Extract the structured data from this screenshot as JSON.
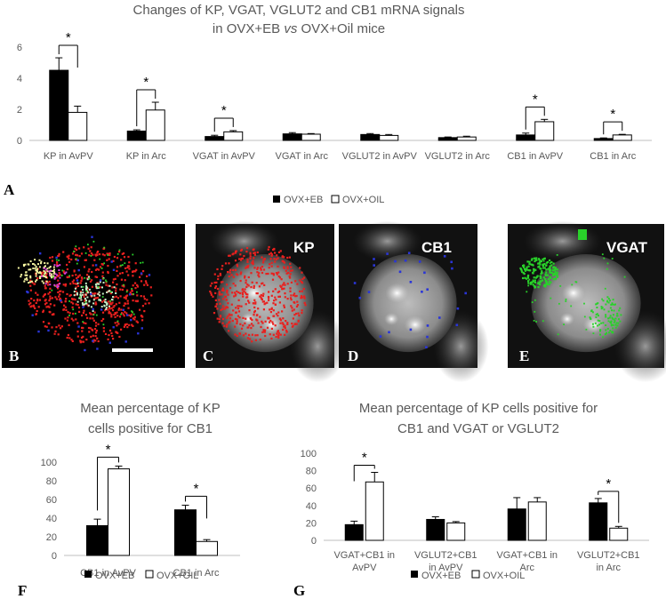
{
  "chart_data": [
    {
      "type": "bar",
      "panel": "A",
      "title_lines": [
        "Changes of KP, VGAT, VGLUT2 and CB1 mRNA signals",
        "in OVX+EB vs OVX+Oil mice"
      ],
      "categories": [
        "KP in AvPV",
        "KP in Arc",
        "VGAT in AvPV",
        "VGAT in Arc",
        "VGLUT2 in AvPV",
        "VGLUT2 in Arc",
        "CB1 in AvPV",
        "CB1 in Arc"
      ],
      "series": [
        {
          "name": "OVX+EB",
          "values": [
            4.5,
            0.6,
            0.25,
            0.42,
            0.38,
            0.18,
            0.35,
            0.12
          ],
          "errors": [
            0.8,
            0.08,
            0.08,
            0.08,
            0.06,
            0.04,
            0.12,
            0.04
          ],
          "color": "#000000"
        },
        {
          "name": "OVX+OIL",
          "values": [
            1.8,
            1.95,
            0.55,
            0.4,
            0.32,
            0.22,
            1.2,
            0.35
          ],
          "errors": [
            0.4,
            0.5,
            0.08,
            0.04,
            0.06,
            0.05,
            0.15,
            0.04
          ],
          "color": "#ffffff"
        }
      ],
      "significant": [
        0,
        1,
        2,
        6,
        7
      ],
      "significance_marker": "*",
      "yticks": [
        0,
        2,
        4,
        6
      ],
      "ylim": [
        0,
        6.5
      ]
    },
    {
      "type": "bar",
      "panel": "F",
      "title_lines": [
        "Mean percentage of KP",
        "cells positive for CB1"
      ],
      "categories": [
        "CB1 in AvPV",
        "CB1 in Arc"
      ],
      "series": [
        {
          "name": "OVX+EB",
          "values": [
            32,
            49
          ],
          "errors": [
            7,
            5
          ],
          "color": "#000000"
        },
        {
          "name": "OVX+OIL",
          "values": [
            93,
            15
          ],
          "errors": [
            3,
            2
          ],
          "color": "#ffffff"
        }
      ],
      "significant": [
        0,
        1
      ],
      "significance_marker": "*",
      "yticks": [
        0,
        20,
        40,
        60,
        80,
        100
      ],
      "ylim": [
        0,
        105
      ]
    },
    {
      "type": "bar",
      "panel": "G",
      "title_lines": [
        "Mean percentage of KP cells positive for",
        "CB1 and VGAT or VGLUT2"
      ],
      "categories": [
        [
          "VGAT+CB1 in",
          "AvPV"
        ],
        [
          "VGLUT2+CB1",
          "in AvPV"
        ],
        [
          "VGAT+CB1 in",
          "Arc"
        ],
        [
          "VGLUT2+CB1",
          "in Arc"
        ]
      ],
      "series": [
        {
          "name": "OVX+EB",
          "values": [
            18,
            24,
            36,
            43
          ],
          "errors": [
            4,
            3,
            13,
            5
          ],
          "color": "#000000"
        },
        {
          "name": "OVX+OIL",
          "values": [
            67,
            20,
            44,
            14
          ],
          "errors": [
            11,
            1.5,
            5,
            2
          ],
          "color": "#ffffff"
        }
      ],
      "significant": [
        0,
        3
      ],
      "significance_marker": "*",
      "yticks": [
        0,
        20,
        40,
        60,
        80,
        100
      ],
      "ylim": [
        0,
        105
      ]
    }
  ],
  "legend": {
    "eb": "OVX+EB",
    "oil": "OVX+OIL"
  },
  "panels": {
    "A": "A",
    "B": "B",
    "C": "C",
    "D": "D",
    "E": "E",
    "F": "F",
    "G": "G"
  },
  "micrographs": {
    "C": {
      "label": "KP",
      "dot_color": "#e8201e"
    },
    "D": {
      "label": "CB1",
      "dot_color": "#2a35d8"
    },
    "E": {
      "label": "VGAT",
      "dot_color": "#29d22a"
    }
  }
}
